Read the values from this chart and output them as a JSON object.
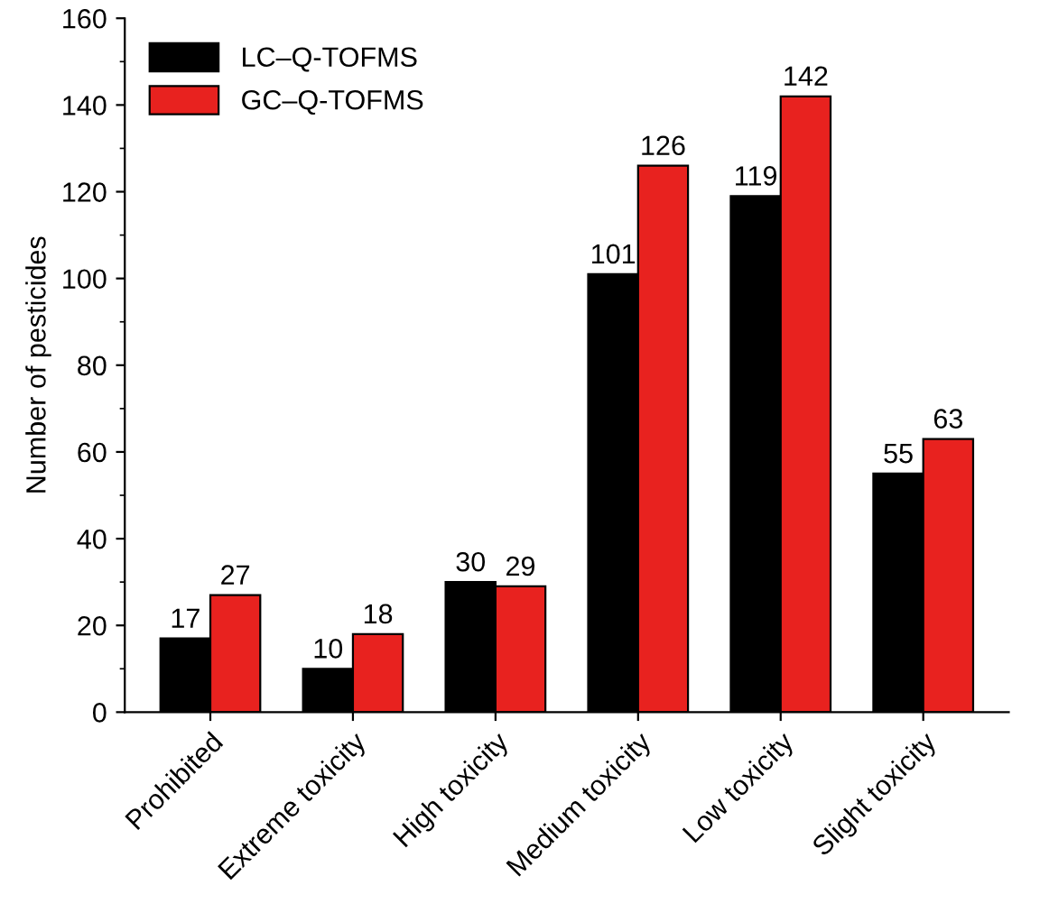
{
  "chart_data": {
    "type": "bar",
    "ylabel": "Number of pesticides",
    "categories": [
      "Prohibited",
      "Extreme toxicity",
      "High toxicity",
      "Medium toxicity",
      "Low toxicity",
      "Slight toxicity"
    ],
    "series": [
      {
        "name": "LC–Q-TOFMS",
        "color": "#000000",
        "values": [
          17,
          10,
          30,
          101,
          119,
          55
        ]
      },
      {
        "name": "GC–Q-TOFMS",
        "color": "#e8221f",
        "values": [
          27,
          18,
          29,
          126,
          142,
          63
        ]
      }
    ],
    "ylim": [
      0,
      160
    ],
    "yticks": [
      0,
      20,
      40,
      60,
      80,
      100,
      120,
      140,
      160
    ],
    "data_labels": true,
    "legend": "top left",
    "grid": false
  }
}
